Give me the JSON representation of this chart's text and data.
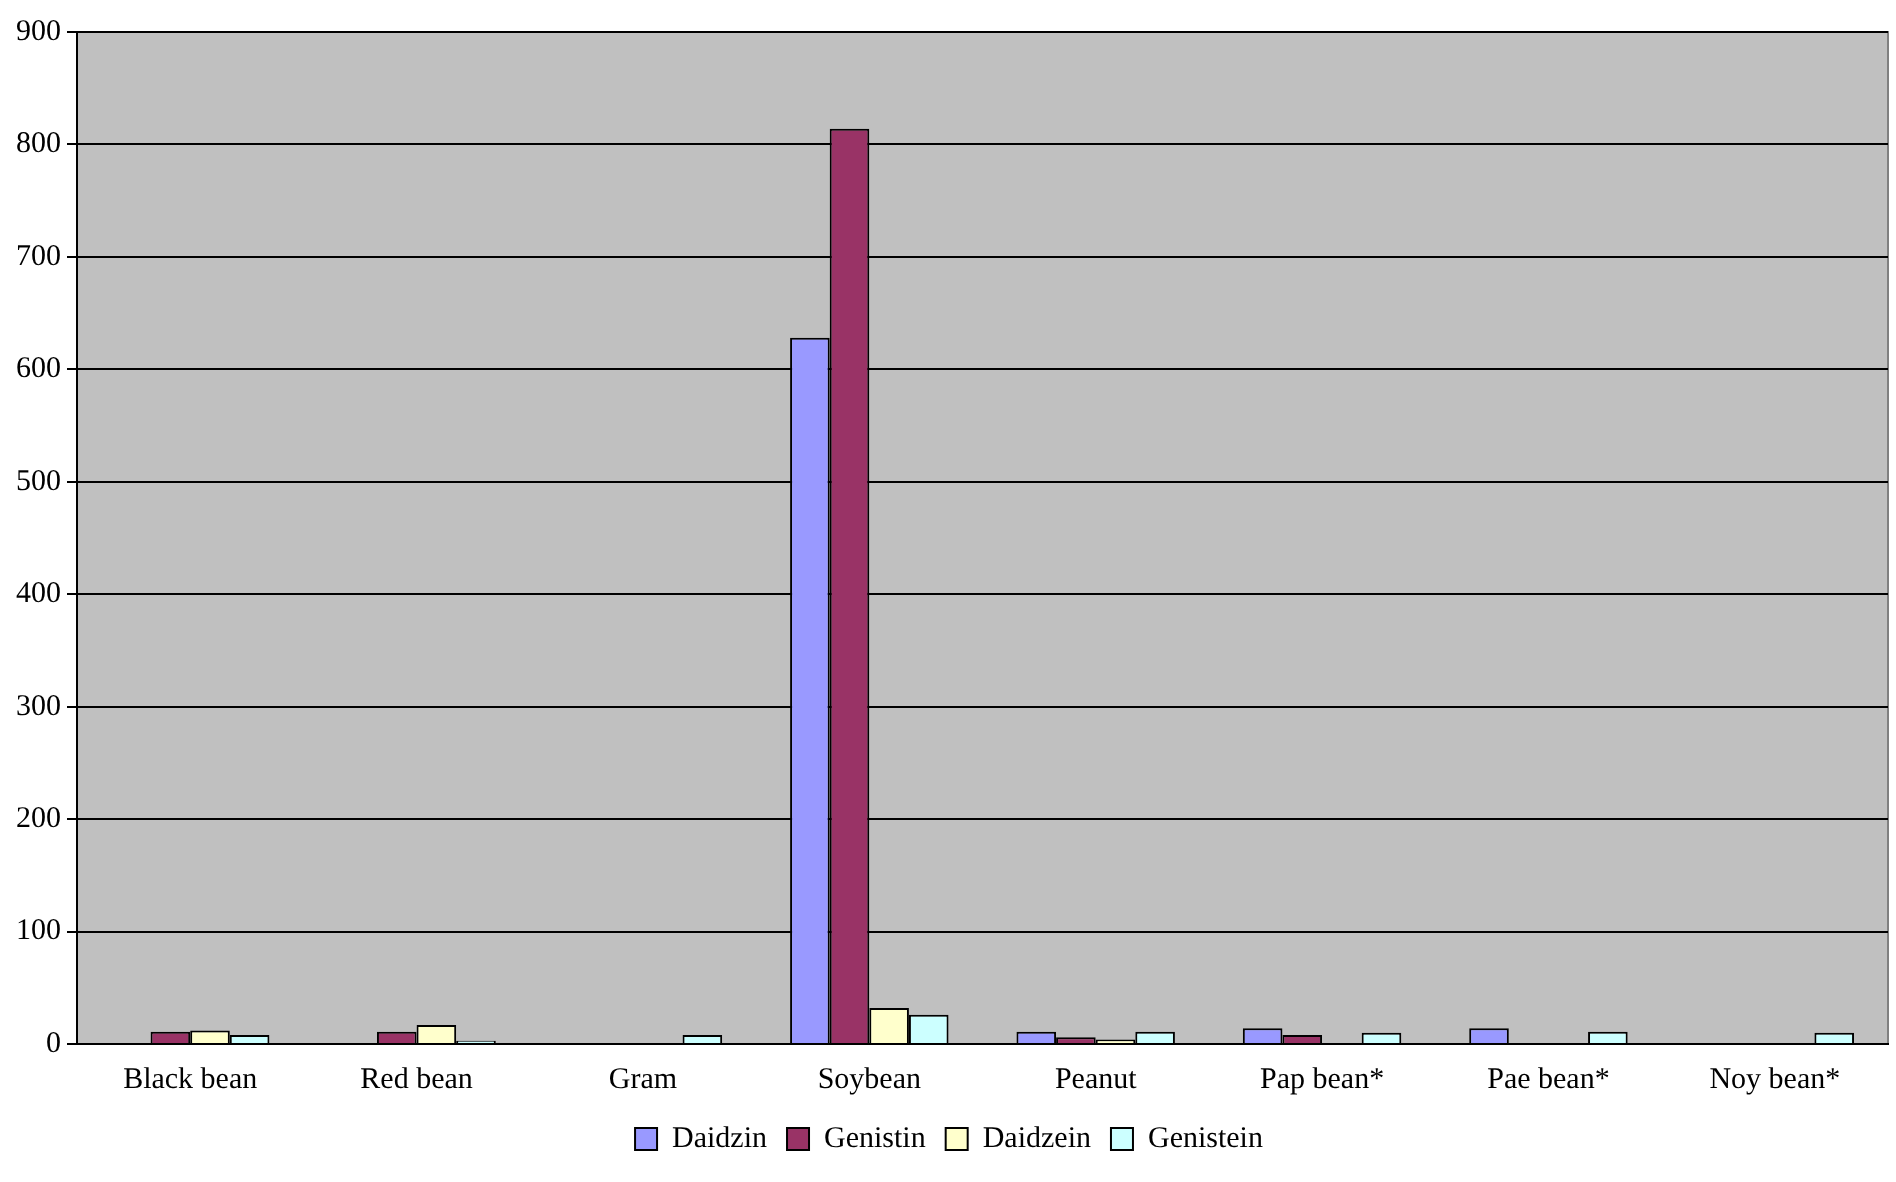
{
  "chart_data": {
    "type": "bar",
    "categories": [
      "Black bean",
      "Red bean",
      "Gram",
      "Soybean",
      "Peanut",
      "Pap bean*",
      "Pae bean*",
      "Noy bean*"
    ],
    "series": [
      {
        "name": "Daidzin",
        "color": "#9999ff",
        "values": [
          0,
          0,
          0,
          628,
          11,
          14,
          14,
          0
        ]
      },
      {
        "name": "Genistin",
        "color": "#993366",
        "values": [
          11,
          11,
          0,
          814,
          6,
          8,
          0,
          0
        ]
      },
      {
        "name": "Daidzein",
        "color": "#ffffcc",
        "values": [
          12,
          17,
          0,
          32,
          4,
          0,
          0,
          0
        ]
      },
      {
        "name": "Genistein",
        "color": "#ccffff",
        "values": [
          8,
          3,
          8,
          26,
          11,
          10,
          11,
          10
        ]
      }
    ],
    "ylim": [
      0,
      900
    ],
    "yticks": [
      0,
      100,
      200,
      300,
      400,
      500,
      600,
      700,
      800,
      900
    ],
    "grid": "y",
    "legend": "bottom"
  }
}
